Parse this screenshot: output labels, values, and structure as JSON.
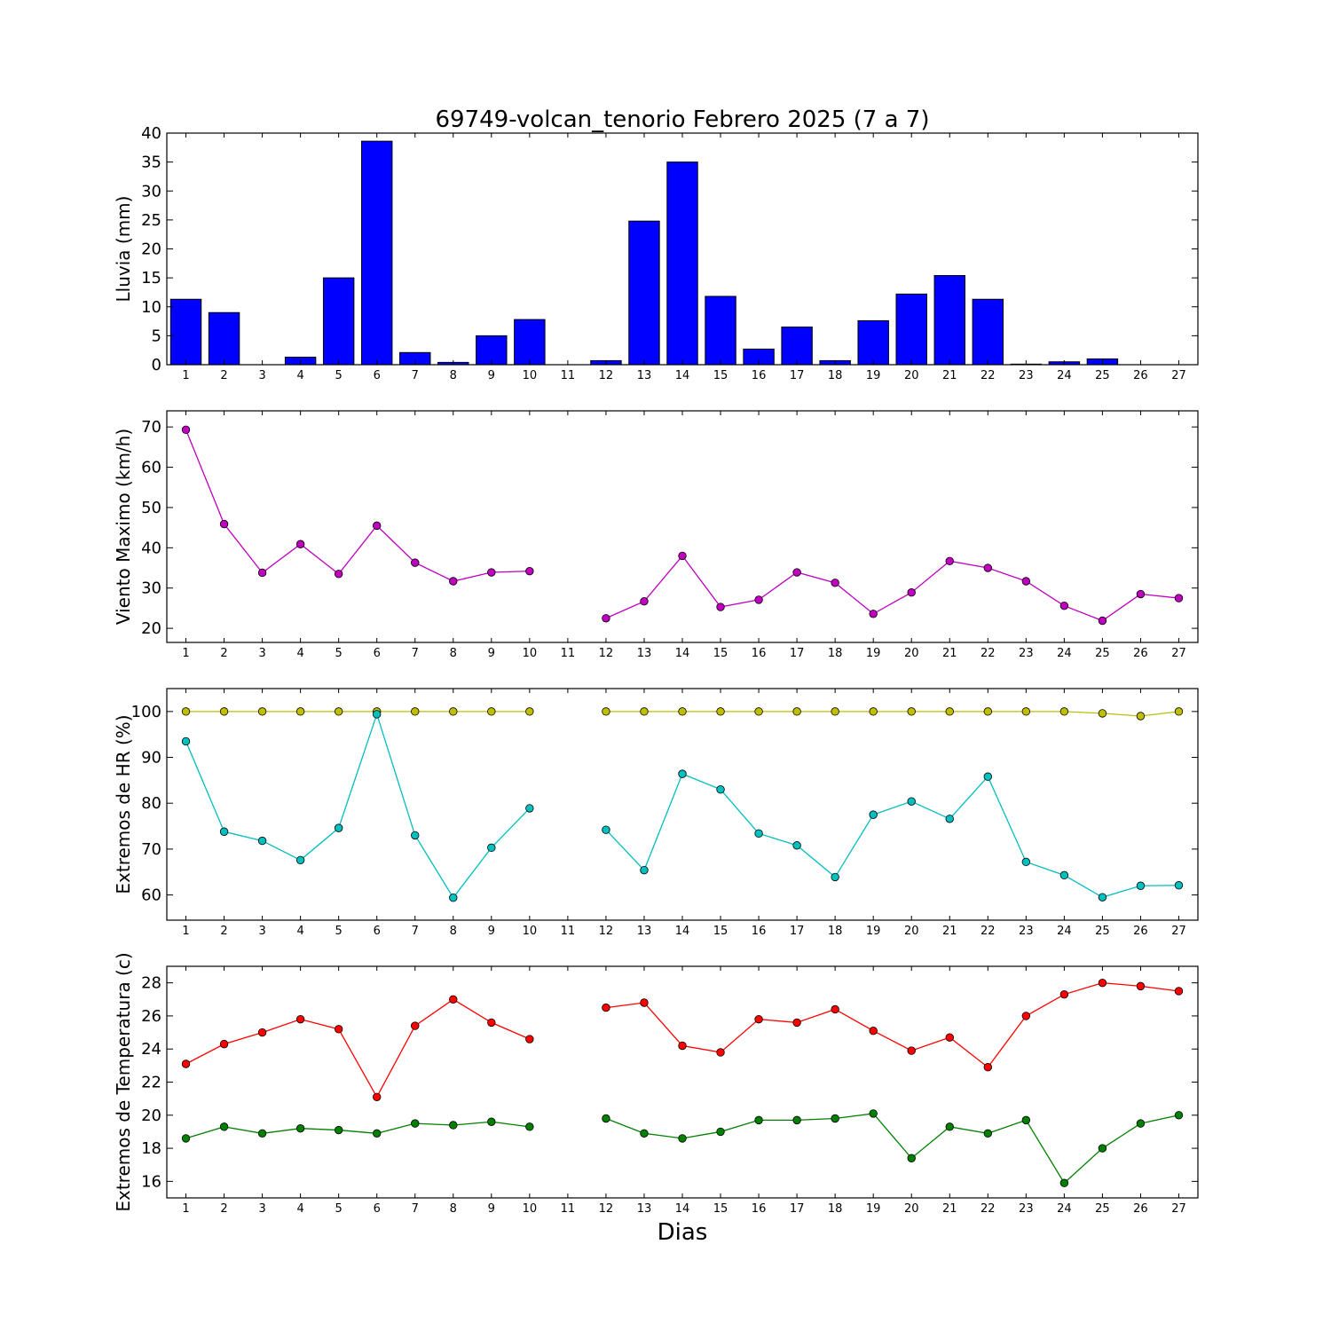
{
  "title": "69749-volcan_tenorio Febrero 2025  (7 a 7)",
  "xlabel": "Dias",
  "colors": {
    "bar": "#0000ff",
    "viento": "#bf00bf",
    "hr_max": "#bfbf00",
    "hr_min": "#00bfbf",
    "temp_max": "#ff0000",
    "temp_min": "#008000"
  },
  "chart_data": [
    {
      "type": "bar",
      "ylabel": "Lluvia (mm)",
      "ylim": [
        0,
        40
      ],
      "yticks": [
        0,
        5,
        10,
        15,
        20,
        25,
        30,
        35,
        40
      ],
      "categories": [
        1,
        2,
        3,
        4,
        5,
        6,
        7,
        8,
        9,
        10,
        11,
        12,
        13,
        14,
        15,
        16,
        17,
        18,
        19,
        20,
        21,
        22,
        23,
        24,
        25,
        26,
        27
      ],
      "values": [
        11.3,
        9.0,
        0.0,
        1.3,
        15.0,
        38.6,
        2.1,
        0.4,
        5.0,
        7.8,
        0.0,
        0.7,
        24.8,
        35.0,
        11.8,
        2.7,
        6.5,
        0.7,
        7.6,
        12.2,
        15.4,
        11.3,
        0.1,
        0.5,
        1.0,
        0.0,
        0.0
      ],
      "grid": false,
      "color_key": "bar"
    },
    {
      "type": "line",
      "ylabel": "Viento Maximo (km/h)",
      "ylim": [
        16.5,
        74
      ],
      "yticks": [
        20,
        30,
        40,
        50,
        60,
        70
      ],
      "x": [
        1,
        2,
        3,
        4,
        5,
        6,
        7,
        8,
        9,
        10,
        11,
        12,
        13,
        14,
        15,
        16,
        17,
        18,
        19,
        20,
        21,
        22,
        23,
        24,
        25,
        26,
        27
      ],
      "series": [
        {
          "values": [
            69.3,
            45.9,
            33.8,
            40.9,
            33.5,
            45.5,
            36.3,
            31.7,
            33.9,
            34.2,
            null,
            22.5,
            26.7,
            38.0,
            25.3,
            27.1,
            33.9,
            31.3,
            23.6,
            28.9,
            36.7,
            35.0,
            31.7,
            25.6,
            21.9,
            28.5,
            27.5
          ],
          "color_key": "viento"
        }
      ],
      "grid": false
    },
    {
      "type": "line",
      "ylabel": "Extremos de HR (%)",
      "ylim": [
        54.5,
        105
      ],
      "yticks": [
        60,
        70,
        80,
        90,
        100
      ],
      "x": [
        1,
        2,
        3,
        4,
        5,
        6,
        7,
        8,
        9,
        10,
        11,
        12,
        13,
        14,
        15,
        16,
        17,
        18,
        19,
        20,
        21,
        22,
        23,
        24,
        25,
        26,
        27
      ],
      "series": [
        {
          "values": [
            100,
            100,
            100,
            100,
            100,
            100,
            100,
            100,
            100,
            100,
            null,
            100,
            100,
            100,
            100,
            100,
            100,
            100,
            100,
            100,
            100,
            100,
            100,
            100,
            99.6,
            99.0,
            100
          ],
          "color_key": "hr_max"
        },
        {
          "values": [
            93.5,
            73.8,
            71.8,
            67.6,
            74.6,
            99.4,
            73.0,
            59.4,
            70.3,
            78.9,
            null,
            74.2,
            65.4,
            86.4,
            83.0,
            73.4,
            70.8,
            63.9,
            77.5,
            80.4,
            76.6,
            85.8,
            67.2,
            64.3,
            59.5,
            62.0,
            62.1
          ],
          "color_key": "hr_min"
        }
      ],
      "grid": false
    },
    {
      "type": "line",
      "ylabel": "Extremos de Temperatura (c)",
      "ylim": [
        15,
        29
      ],
      "yticks": [
        16,
        18,
        20,
        22,
        24,
        26,
        28
      ],
      "x": [
        1,
        2,
        3,
        4,
        5,
        6,
        7,
        8,
        9,
        10,
        11,
        12,
        13,
        14,
        15,
        16,
        17,
        18,
        19,
        20,
        21,
        22,
        23,
        24,
        25,
        26,
        27
      ],
      "series": [
        {
          "values": [
            23.1,
            24.3,
            25.0,
            25.8,
            25.2,
            21.1,
            25.4,
            27.0,
            25.6,
            24.6,
            null,
            26.5,
            26.8,
            24.2,
            23.8,
            25.8,
            25.6,
            26.4,
            25.1,
            23.9,
            24.7,
            22.9,
            26.0,
            27.3,
            28.0,
            27.8,
            27.5
          ],
          "color_key": "temp_max"
        },
        {
          "values": [
            18.6,
            19.3,
            18.9,
            19.2,
            19.1,
            18.9,
            19.5,
            19.4,
            19.6,
            19.3,
            null,
            19.8,
            18.9,
            18.6,
            19.0,
            19.7,
            19.7,
            19.8,
            20.1,
            17.4,
            19.3,
            18.9,
            19.7,
            15.9,
            18.0,
            19.5,
            20.0
          ],
          "color_key": "temp_min"
        }
      ],
      "grid": false
    }
  ]
}
